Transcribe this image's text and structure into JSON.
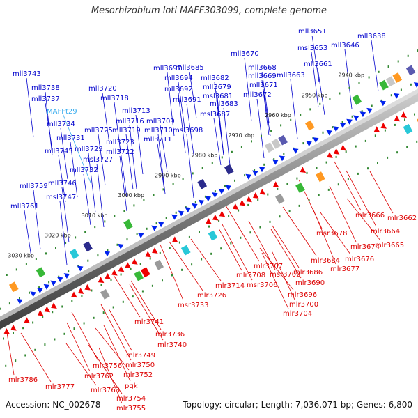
{
  "title": "Mesorhizobium loti MAFF303099, complete genome",
  "footer": {
    "accession_label": "Accession:",
    "accession": "NC_002678",
    "topology_label": "Topology:",
    "topology": "circular",
    "separator": ";",
    "length_label": "Length:",
    "length": "7,036,071 bp",
    "genes_label": "Genes:",
    "genes": "6,800"
  },
  "colors": {
    "plus_strand_label": "#0000cc",
    "minus_strand_label": "#dd0000",
    "rna_label": "#33aaee",
    "plus_gene": "#0022ee",
    "minus_gene": "#ee0000",
    "tick_dot": "#338833"
  },
  "scale_labels": [
    "2940 kbp",
    "2950 kbp",
    "2960 kbp",
    "2970 kbp",
    "2980 kbp",
    "2990 kbp",
    "3000 kbp",
    "3010 kbp",
    "3020 kbp",
    "3030 kbp"
  ],
  "genes_plus": [
    "mll3651",
    "mll3638",
    "msl3653",
    "mll3646",
    "mll3670",
    "mll3661",
    "mll3668",
    "mll3669",
    "mll3663",
    "mll3697",
    "mll3685",
    "mll3694",
    "mll3682",
    "mll3692",
    "mll3679",
    "mll3671",
    "mll3691",
    "msl3681",
    "mll3672",
    "mll3683",
    "msl3687",
    "mll3720",
    "mll3718",
    "mll3713",
    "mll3716",
    "mll3709",
    "mll3725",
    "mll3719",
    "mll3710",
    "msl3698",
    "mll3711",
    "mll3723",
    "mll3722",
    "mll3743",
    "mll3738",
    "mll3737",
    "mll3734",
    "mll3731",
    "mll3729",
    "msl3727",
    "mll3745",
    "mll3732",
    "mll3746",
    "mll3759",
    "msl3747",
    "mll3761"
  ],
  "genes_rna": [
    "MAFFt29"
  ],
  "genes_minus": [
    "mlr3662",
    "mlr3666",
    "mlr3664",
    "mlr3665",
    "msr3678",
    "mlr3674",
    "mlr3676",
    "mlr3684",
    "mlr3677",
    "mlr3686",
    "mlr3690",
    "mlr3707",
    "mlr3708",
    "msr3702",
    "msr3706",
    "mlr3696",
    "mlr3700",
    "mlr3704",
    "mlr3714",
    "mlr3726",
    "msr3733",
    "mlr3741",
    "mlr3736",
    "mlr3740",
    "mlr3749",
    "mlr3756",
    "mlr3750",
    "mlr3752",
    "mlr3762",
    "pgk",
    "mlr3763",
    "mlr3754",
    "mlr3755",
    "mlr3786",
    "mlr3777"
  ]
}
